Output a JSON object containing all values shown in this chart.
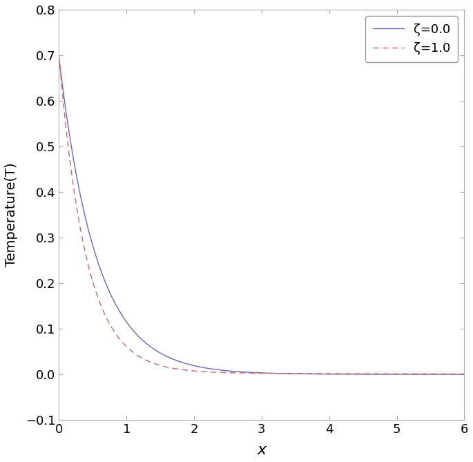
{
  "title": "",
  "xlabel": "x",
  "ylabel": "Temperature(T)",
  "xlim": [
    0,
    6
  ],
  "ylim": [
    -0.1,
    0.8
  ],
  "yticks": [
    -0.1,
    0,
    0.1,
    0.2,
    0.3,
    0.4,
    0.5,
    0.6,
    0.7,
    0.8
  ],
  "xticks": [
    0,
    1,
    2,
    3,
    4,
    5,
    6
  ],
  "line1_color": "#6666bb",
  "line1_style": "solid",
  "line1_label": "ζ=0.0",
  "line2_color": "#cc6666",
  "line2_style": "dashed",
  "line2_label": "ζ=1.0",
  "legend_loc": "upper right",
  "figsize": [
    6.85,
    6.69
  ],
  "dpi": 100,
  "spine_color": "#aaaaaa",
  "tick_color": "#555555",
  "background": "#ffffff"
}
